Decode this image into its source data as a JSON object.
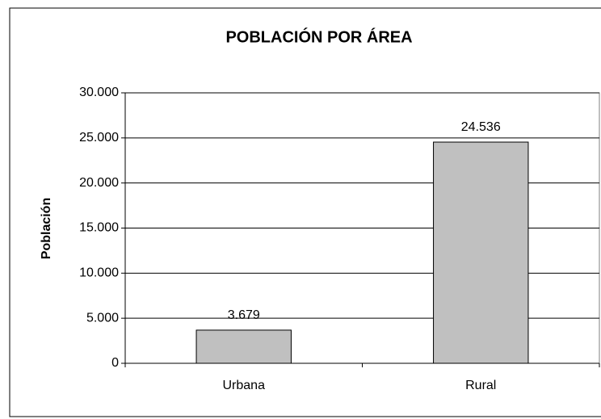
{
  "chart_data": {
    "type": "bar",
    "title": "POBLACIÓN POR ÁREA",
    "y_label": "Población",
    "categories": [
      "Urbana",
      "Rural"
    ],
    "values": [
      3679,
      24536
    ],
    "value_labels": [
      "3.679",
      "24.536"
    ],
    "color": "#c0c0c0",
    "ylim": [
      0,
      30000
    ],
    "yticks": [
      0,
      {
        "value": 5000,
        "label": "5.000"
      },
      {
        "value": 10000,
        "label": "10.000"
      },
      {
        "value": 15000,
        "label": "15.000"
      },
      {
        "value": 20000,
        "label": "20.000"
      },
      {
        "value": 25000,
        "label": "25.000"
      },
      {
        "value": 30000,
        "label": "30.000"
      }
    ],
    "grid": true
  }
}
